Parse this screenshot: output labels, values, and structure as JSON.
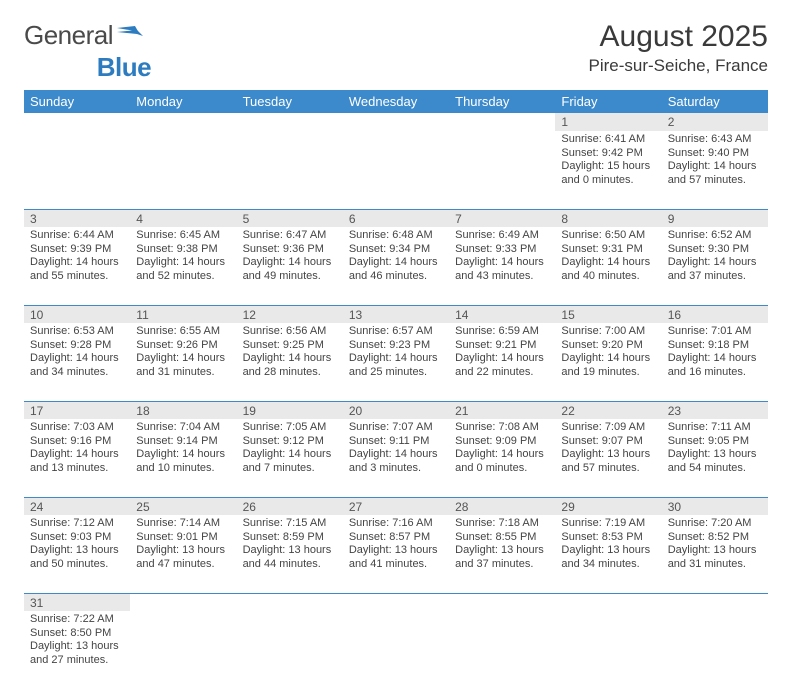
{
  "brand": {
    "part1": "General",
    "part2": "Blue"
  },
  "title": "August 2025",
  "location": "Pire-sur-Seiche, France",
  "colors": {
    "header_bg": "#3c8acb",
    "header_text": "#ffffff",
    "daynum_bg": "#e9e9e9",
    "cell_border": "#3c8acb",
    "logo_blue": "#2e7cc0",
    "text": "#444444"
  },
  "dayHeaders": [
    "Sunday",
    "Monday",
    "Tuesday",
    "Wednesday",
    "Thursday",
    "Friday",
    "Saturday"
  ],
  "weeks": [
    {
      "nums": [
        "",
        "",
        "",
        "",
        "",
        "1",
        "2"
      ],
      "cells": [
        null,
        null,
        null,
        null,
        null,
        {
          "sr": "Sunrise: 6:41 AM",
          "ss": "Sunset: 9:42 PM",
          "d1": "Daylight: 15 hours",
          "d2": "and 0 minutes."
        },
        {
          "sr": "Sunrise: 6:43 AM",
          "ss": "Sunset: 9:40 PM",
          "d1": "Daylight: 14 hours",
          "d2": "and 57 minutes."
        }
      ]
    },
    {
      "nums": [
        "3",
        "4",
        "5",
        "6",
        "7",
        "8",
        "9"
      ],
      "cells": [
        {
          "sr": "Sunrise: 6:44 AM",
          "ss": "Sunset: 9:39 PM",
          "d1": "Daylight: 14 hours",
          "d2": "and 55 minutes."
        },
        {
          "sr": "Sunrise: 6:45 AM",
          "ss": "Sunset: 9:38 PM",
          "d1": "Daylight: 14 hours",
          "d2": "and 52 minutes."
        },
        {
          "sr": "Sunrise: 6:47 AM",
          "ss": "Sunset: 9:36 PM",
          "d1": "Daylight: 14 hours",
          "d2": "and 49 minutes."
        },
        {
          "sr": "Sunrise: 6:48 AM",
          "ss": "Sunset: 9:34 PM",
          "d1": "Daylight: 14 hours",
          "d2": "and 46 minutes."
        },
        {
          "sr": "Sunrise: 6:49 AM",
          "ss": "Sunset: 9:33 PM",
          "d1": "Daylight: 14 hours",
          "d2": "and 43 minutes."
        },
        {
          "sr": "Sunrise: 6:50 AM",
          "ss": "Sunset: 9:31 PM",
          "d1": "Daylight: 14 hours",
          "d2": "and 40 minutes."
        },
        {
          "sr": "Sunrise: 6:52 AM",
          "ss": "Sunset: 9:30 PM",
          "d1": "Daylight: 14 hours",
          "d2": "and 37 minutes."
        }
      ]
    },
    {
      "nums": [
        "10",
        "11",
        "12",
        "13",
        "14",
        "15",
        "16"
      ],
      "cells": [
        {
          "sr": "Sunrise: 6:53 AM",
          "ss": "Sunset: 9:28 PM",
          "d1": "Daylight: 14 hours",
          "d2": "and 34 minutes."
        },
        {
          "sr": "Sunrise: 6:55 AM",
          "ss": "Sunset: 9:26 PM",
          "d1": "Daylight: 14 hours",
          "d2": "and 31 minutes."
        },
        {
          "sr": "Sunrise: 6:56 AM",
          "ss": "Sunset: 9:25 PM",
          "d1": "Daylight: 14 hours",
          "d2": "and 28 minutes."
        },
        {
          "sr": "Sunrise: 6:57 AM",
          "ss": "Sunset: 9:23 PM",
          "d1": "Daylight: 14 hours",
          "d2": "and 25 minutes."
        },
        {
          "sr": "Sunrise: 6:59 AM",
          "ss": "Sunset: 9:21 PM",
          "d1": "Daylight: 14 hours",
          "d2": "and 22 minutes."
        },
        {
          "sr": "Sunrise: 7:00 AM",
          "ss": "Sunset: 9:20 PM",
          "d1": "Daylight: 14 hours",
          "d2": "and 19 minutes."
        },
        {
          "sr": "Sunrise: 7:01 AM",
          "ss": "Sunset: 9:18 PM",
          "d1": "Daylight: 14 hours",
          "d2": "and 16 minutes."
        }
      ]
    },
    {
      "nums": [
        "17",
        "18",
        "19",
        "20",
        "21",
        "22",
        "23"
      ],
      "cells": [
        {
          "sr": "Sunrise: 7:03 AM",
          "ss": "Sunset: 9:16 PM",
          "d1": "Daylight: 14 hours",
          "d2": "and 13 minutes."
        },
        {
          "sr": "Sunrise: 7:04 AM",
          "ss": "Sunset: 9:14 PM",
          "d1": "Daylight: 14 hours",
          "d2": "and 10 minutes."
        },
        {
          "sr": "Sunrise: 7:05 AM",
          "ss": "Sunset: 9:12 PM",
          "d1": "Daylight: 14 hours",
          "d2": "and 7 minutes."
        },
        {
          "sr": "Sunrise: 7:07 AM",
          "ss": "Sunset: 9:11 PM",
          "d1": "Daylight: 14 hours",
          "d2": "and 3 minutes."
        },
        {
          "sr": "Sunrise: 7:08 AM",
          "ss": "Sunset: 9:09 PM",
          "d1": "Daylight: 14 hours",
          "d2": "and 0 minutes."
        },
        {
          "sr": "Sunrise: 7:09 AM",
          "ss": "Sunset: 9:07 PM",
          "d1": "Daylight: 13 hours",
          "d2": "and 57 minutes."
        },
        {
          "sr": "Sunrise: 7:11 AM",
          "ss": "Sunset: 9:05 PM",
          "d1": "Daylight: 13 hours",
          "d2": "and 54 minutes."
        }
      ]
    },
    {
      "nums": [
        "24",
        "25",
        "26",
        "27",
        "28",
        "29",
        "30"
      ],
      "cells": [
        {
          "sr": "Sunrise: 7:12 AM",
          "ss": "Sunset: 9:03 PM",
          "d1": "Daylight: 13 hours",
          "d2": "and 50 minutes."
        },
        {
          "sr": "Sunrise: 7:14 AM",
          "ss": "Sunset: 9:01 PM",
          "d1": "Daylight: 13 hours",
          "d2": "and 47 minutes."
        },
        {
          "sr": "Sunrise: 7:15 AM",
          "ss": "Sunset: 8:59 PM",
          "d1": "Daylight: 13 hours",
          "d2": "and 44 minutes."
        },
        {
          "sr": "Sunrise: 7:16 AM",
          "ss": "Sunset: 8:57 PM",
          "d1": "Daylight: 13 hours",
          "d2": "and 41 minutes."
        },
        {
          "sr": "Sunrise: 7:18 AM",
          "ss": "Sunset: 8:55 PM",
          "d1": "Daylight: 13 hours",
          "d2": "and 37 minutes."
        },
        {
          "sr": "Sunrise: 7:19 AM",
          "ss": "Sunset: 8:53 PM",
          "d1": "Daylight: 13 hours",
          "d2": "and 34 minutes."
        },
        {
          "sr": "Sunrise: 7:20 AM",
          "ss": "Sunset: 8:52 PM",
          "d1": "Daylight: 13 hours",
          "d2": "and 31 minutes."
        }
      ]
    },
    {
      "nums": [
        "31",
        "",
        "",
        "",
        "",
        "",
        ""
      ],
      "cells": [
        {
          "sr": "Sunrise: 7:22 AM",
          "ss": "Sunset: 8:50 PM",
          "d1": "Daylight: 13 hours",
          "d2": "and 27 minutes."
        },
        null,
        null,
        null,
        null,
        null,
        null
      ]
    }
  ]
}
